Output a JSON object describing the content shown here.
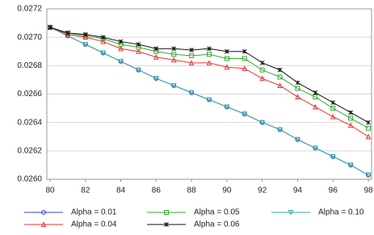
{
  "chart_data": {
    "type": "line",
    "x": [
      80,
      81,
      82,
      83,
      84,
      85,
      86,
      87,
      88,
      89,
      90,
      91,
      92,
      93,
      94,
      95,
      96,
      97,
      98
    ],
    "xlim": [
      80,
      98
    ],
    "xticks": [
      80,
      82,
      84,
      86,
      88,
      90,
      92,
      94,
      96,
      98
    ],
    "ylim": [
      0.026,
      0.0272
    ],
    "yticks": [
      {
        "value": 0.026,
        "label": "0.0260"
      },
      0.0262,
      0.0264,
      0.0266,
      0.0268,
      {
        "value": 0.027,
        "label": "0.0270"
      },
      0.0272
    ],
    "grid": true,
    "legend": "bottom",
    "series": [
      {
        "name": "Alpha = 0.01",
        "color": "#3344cc",
        "marker": "circle",
        "values": [
          0.02707,
          0.02701,
          0.02695,
          0.02689,
          0.02683,
          0.02677,
          0.02671,
          0.02666,
          0.02661,
          0.02656,
          0.02651,
          0.02646,
          0.0264,
          0.02635,
          0.02628,
          0.02622,
          0.02616,
          0.0261,
          0.02603
        ]
      },
      {
        "name": "Alpha = 0.05",
        "color": "#33aa33",
        "marker": "square",
        "values": [
          0.02707,
          0.02703,
          0.02701,
          0.02699,
          0.02695,
          0.02693,
          0.0269,
          0.02688,
          0.02687,
          0.02688,
          0.02685,
          0.02685,
          0.02677,
          0.02672,
          0.02664,
          0.02658,
          0.0265,
          0.02643,
          0.02636
        ]
      },
      {
        "name": "Alpha = 0.10",
        "color": "#33aaaa",
        "marker": "triangle-down",
        "values": [
          0.02707,
          0.02701,
          0.02695,
          0.02689,
          0.02683,
          0.02677,
          0.02671,
          0.02666,
          0.02661,
          0.02656,
          0.02651,
          0.02646,
          0.0264,
          0.02635,
          0.02628,
          0.02622,
          0.02616,
          0.0261,
          0.02603
        ]
      },
      {
        "name": "Alpha = 0.04",
        "color": "#ee3333",
        "marker": "triangle-up",
        "values": [
          0.02707,
          0.02702,
          0.027,
          0.02697,
          0.02692,
          0.0269,
          0.02686,
          0.02684,
          0.02682,
          0.02682,
          0.02679,
          0.02678,
          0.02671,
          0.02666,
          0.02658,
          0.02651,
          0.02644,
          0.02638,
          0.0263
        ]
      },
      {
        "name": "Alpha = 0.06",
        "color": "#111111",
        "marker": "star",
        "values": [
          0.02707,
          0.02703,
          0.02702,
          0.027,
          0.02697,
          0.02695,
          0.02692,
          0.02692,
          0.02691,
          0.02692,
          0.0269,
          0.0269,
          0.02682,
          0.02677,
          0.02668,
          0.02661,
          0.02654,
          0.02647,
          0.0264
        ]
      }
    ]
  }
}
